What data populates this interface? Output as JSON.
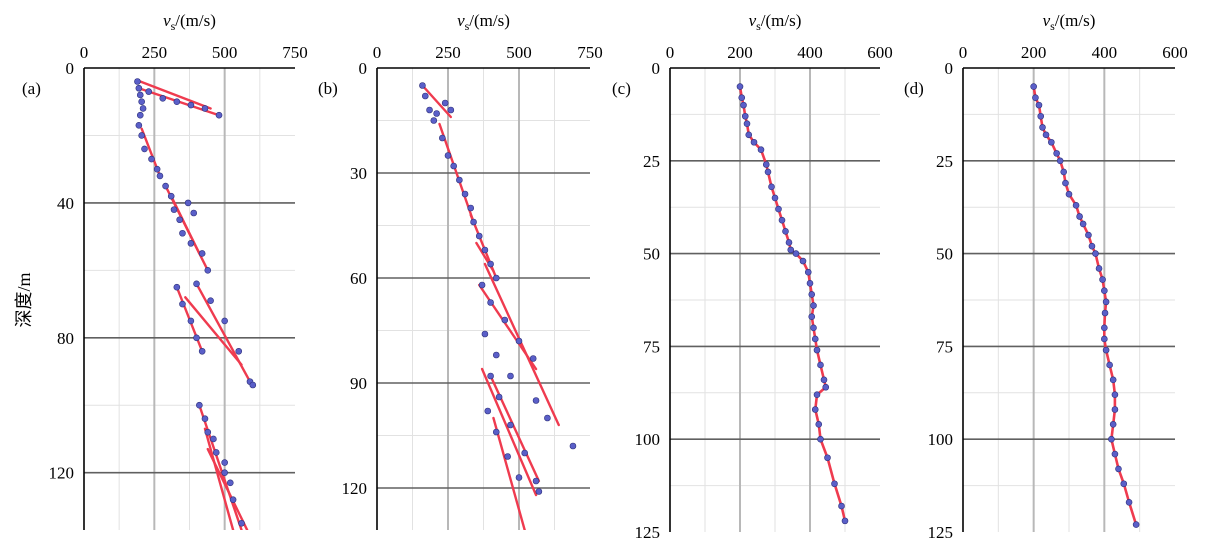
{
  "figure": {
    "ylabel": "深度/m",
    "axis_top_prefix": "v",
    "axis_top_subscript": "s",
    "axis_top_suffix": "/(m/s)"
  },
  "chart_data": [
    {
      "type": "scatter",
      "panel_label": "(a)",
      "title": "",
      "xlabel": "vs/(m/s)",
      "ylabel": "深度/m",
      "xlim": [
        0,
        750
      ],
      "ylim": [
        0,
        137
      ],
      "y_inverted": true,
      "xticks": [
        0,
        250,
        500,
        750
      ],
      "yticks": [
        0,
        40,
        80,
        120
      ],
      "grid": true,
      "series": [
        {
          "points": [
            [
              190,
              4
            ],
            [
              195,
              6
            ],
            [
              200,
              8
            ],
            [
              205,
              10
            ],
            [
              210,
              12
            ],
            [
              200,
              14
            ],
            [
              195,
              17
            ],
            [
              230,
              7
            ],
            [
              280,
              9
            ],
            [
              330,
              10
            ],
            [
              380,
              11
            ],
            [
              430,
              12
            ],
            [
              480,
              14
            ],
            [
              205,
              20
            ],
            [
              215,
              24
            ],
            [
              240,
              27
            ],
            [
              260,
              30
            ],
            [
              270,
              32
            ],
            [
              290,
              35
            ],
            [
              310,
              38
            ],
            [
              320,
              42
            ],
            [
              340,
              45
            ],
            [
              370,
              40
            ],
            [
              390,
              43
            ],
            [
              350,
              49
            ],
            [
              380,
              52
            ],
            [
              420,
              55
            ],
            [
              440,
              60
            ],
            [
              330,
              65
            ],
            [
              350,
              70
            ],
            [
              380,
              75
            ],
            [
              400,
              80
            ],
            [
              420,
              84
            ],
            [
              400,
              64
            ],
            [
              450,
              69
            ],
            [
              500,
              75
            ],
            [
              550,
              84
            ],
            [
              590,
              93
            ],
            [
              600,
              94
            ],
            [
              430,
              104
            ],
            [
              460,
              110
            ],
            [
              500,
              117
            ],
            [
              520,
              123
            ],
            [
              410,
              100
            ],
            [
              440,
              108
            ],
            [
              470,
              114
            ],
            [
              500,
              120
            ],
            [
              530,
              128
            ],
            [
              560,
              135
            ]
          ],
          "line_segments": [
            [
              [
                195,
                6
              ],
              [
                480,
                14
              ]
            ],
            [
              [
                200,
                4
              ],
              [
                450,
                12
              ]
            ],
            [
              [
                205,
                18
              ],
              [
                270,
                32
              ]
            ],
            [
              [
                290,
                35
              ],
              [
                440,
                60
              ]
            ],
            [
              [
                310,
                38
              ],
              [
                410,
                55
              ]
            ],
            [
              [
                330,
                65
              ],
              [
                420,
                84
              ]
            ],
            [
              [
                400,
                64
              ],
              [
                590,
                93
              ]
            ],
            [
              [
                360,
                68
              ],
              [
                560,
                88
              ]
            ],
            [
              [
                410,
                100
              ],
              [
                560,
                137
              ]
            ],
            [
              [
                430,
                107
              ],
              [
                530,
                137
              ]
            ],
            [
              [
                440,
                113
              ],
              [
                580,
                137
              ]
            ]
          ]
        }
      ]
    },
    {
      "type": "scatter",
      "panel_label": "(b)",
      "title": "",
      "xlabel": "vs/(m/s)",
      "ylabel": "",
      "xlim": [
        0,
        750
      ],
      "ylim": [
        0,
        132
      ],
      "y_inverted": true,
      "xticks": [
        0,
        250,
        500,
        750
      ],
      "yticks": [
        0,
        30,
        60,
        90,
        120
      ],
      "grid": true,
      "series": [
        {
          "points": [
            [
              160,
              5
            ],
            [
              170,
              8
            ],
            [
              185,
              12
            ],
            [
              200,
              15
            ],
            [
              210,
              13
            ],
            [
              240,
              10
            ],
            [
              260,
              12
            ],
            [
              230,
              20
            ],
            [
              250,
              25
            ],
            [
              270,
              28
            ],
            [
              290,
              32
            ],
            [
              310,
              36
            ],
            [
              330,
              40
            ],
            [
              340,
              44
            ],
            [
              360,
              48
            ],
            [
              380,
              52
            ],
            [
              400,
              56
            ],
            [
              420,
              60
            ],
            [
              370,
              62
            ],
            [
              400,
              67
            ],
            [
              450,
              72
            ],
            [
              500,
              78
            ],
            [
              550,
              83
            ],
            [
              380,
              76
            ],
            [
              420,
              82
            ],
            [
              470,
              88
            ],
            [
              560,
              95
            ],
            [
              600,
              100
            ],
            [
              690,
              108
            ],
            [
              400,
              88
            ],
            [
              430,
              94
            ],
            [
              470,
              102
            ],
            [
              520,
              110
            ],
            [
              560,
              118
            ],
            [
              570,
              121
            ],
            [
              390,
              98
            ],
            [
              420,
              104
            ],
            [
              460,
              111
            ],
            [
              500,
              117
            ]
          ],
          "line_segments": [
            [
              [
                160,
                5
              ],
              [
                260,
                14
              ]
            ],
            [
              [
                220,
                16
              ],
              [
                340,
                44
              ]
            ],
            [
              [
                330,
                42
              ],
              [
                420,
                60
              ]
            ],
            [
              [
                350,
                50
              ],
              [
                410,
                58
              ]
            ],
            [
              [
                360,
                62
              ],
              [
                560,
                86
              ]
            ],
            [
              [
                380,
                56
              ],
              [
                640,
                102
              ]
            ],
            [
              [
                370,
                86
              ],
              [
                560,
                122
              ]
            ],
            [
              [
                400,
                88
              ],
              [
                570,
                118
              ]
            ],
            [
              [
                410,
                100
              ],
              [
                520,
                132
              ]
            ]
          ]
        }
      ]
    },
    {
      "type": "scatter",
      "panel_label": "(c)",
      "title": "",
      "xlabel": "vs/(m/s)",
      "ylabel": "",
      "xlim": [
        0,
        600
      ],
      "ylim": [
        0,
        125
      ],
      "y_inverted": true,
      "xticks": [
        0,
        200,
        400,
        600
      ],
      "yticks": [
        0,
        25,
        50,
        75,
        100,
        125
      ],
      "grid": true,
      "series": [
        {
          "points": [
            [
              200,
              5
            ],
            [
              205,
              8
            ],
            [
              210,
              10
            ],
            [
              215,
              13
            ],
            [
              220,
              15
            ],
            [
              225,
              18
            ],
            [
              240,
              20
            ],
            [
              260,
              22
            ],
            [
              275,
              26
            ],
            [
              280,
              28
            ],
            [
              290,
              32
            ],
            [
              300,
              35
            ],
            [
              310,
              38
            ],
            [
              320,
              41
            ],
            [
              330,
              44
            ],
            [
              340,
              47
            ],
            [
              345,
              49
            ],
            [
              360,
              50
            ],
            [
              380,
              52
            ],
            [
              395,
              55
            ],
            [
              400,
              58
            ],
            [
              405,
              61
            ],
            [
              410,
              64
            ],
            [
              405,
              67
            ],
            [
              410,
              70
            ],
            [
              415,
              73
            ],
            [
              420,
              76
            ],
            [
              430,
              80
            ],
            [
              440,
              84
            ],
            [
              445,
              86
            ],
            [
              420,
              88
            ],
            [
              415,
              92
            ],
            [
              425,
              96
            ],
            [
              430,
              100
            ],
            [
              450,
              105
            ],
            [
              470,
              112
            ],
            [
              490,
              118
            ],
            [
              500,
              122
            ]
          ]
        }
      ]
    },
    {
      "type": "scatter",
      "panel_label": "(d)",
      "title": "",
      "xlabel": "vs/(m/s)",
      "ylabel": "",
      "xlim": [
        0,
        600
      ],
      "ylim": [
        0,
        125
      ],
      "y_inverted": true,
      "xticks": [
        0,
        200,
        400,
        600
      ],
      "yticks": [
        0,
        25,
        50,
        75,
        100,
        125
      ],
      "grid": true,
      "series": [
        {
          "points": [
            [
              200,
              5
            ],
            [
              205,
              8
            ],
            [
              215,
              10
            ],
            [
              220,
              13
            ],
            [
              225,
              16
            ],
            [
              235,
              18
            ],
            [
              250,
              20
            ],
            [
              265,
              23
            ],
            [
              275,
              25
            ],
            [
              285,
              28
            ],
            [
              290,
              31
            ],
            [
              300,
              34
            ],
            [
              320,
              37
            ],
            [
              330,
              40
            ],
            [
              340,
              42
            ],
            [
              355,
              45
            ],
            [
              365,
              48
            ],
            [
              375,
              50
            ],
            [
              385,
              54
            ],
            [
              395,
              57
            ],
            [
              400,
              60
            ],
            [
              405,
              63
            ],
            [
              402,
              66
            ],
            [
              400,
              70
            ],
            [
              400,
              73
            ],
            [
              405,
              76
            ],
            [
              415,
              80
            ],
            [
              425,
              84
            ],
            [
              430,
              88
            ],
            [
              430,
              92
            ],
            [
              425,
              96
            ],
            [
              420,
              100
            ],
            [
              430,
              104
            ],
            [
              440,
              108
            ],
            [
              455,
              112
            ],
            [
              470,
              117
            ],
            [
              490,
              123
            ]
          ]
        }
      ]
    }
  ]
}
